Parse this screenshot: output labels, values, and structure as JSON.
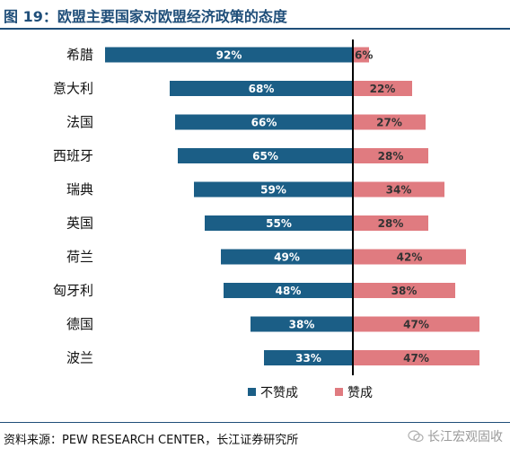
{
  "title": "图 19：欧盟主要国家对欧盟经济政策的态度",
  "source": "资料来源：PEW RESEARCH CENTER，长江证券研究所",
  "watermark": "长江宏观固收",
  "colors": {
    "disapprove": "#1b5e86",
    "approve": "#e07b80",
    "title": "#1f4e79"
  },
  "chart_data": {
    "type": "bar",
    "orientation": "horizontal-diverging",
    "categories": [
      "希腊",
      "意大利",
      "法国",
      "西班牙",
      "瑞典",
      "英国",
      "荷兰",
      "匈牙利",
      "德国",
      "波兰"
    ],
    "series": [
      {
        "name": "不赞成",
        "values": [
          92,
          68,
          66,
          65,
          59,
          55,
          49,
          48,
          38,
          33
        ],
        "labels": [
          "92%",
          "68%",
          "66%",
          "65%",
          "59%",
          "55%",
          "49%",
          "48%",
          "38%",
          "33%"
        ]
      },
      {
        "name": "赞成",
        "values": [
          6,
          22,
          27,
          28,
          34,
          28,
          42,
          38,
          47,
          47
        ],
        "labels": [
          "6%",
          "22%",
          "27%",
          "28%",
          "34%",
          "28%",
          "42%",
          "38%",
          "47%",
          "47%"
        ]
      }
    ],
    "legend": "bottom"
  }
}
